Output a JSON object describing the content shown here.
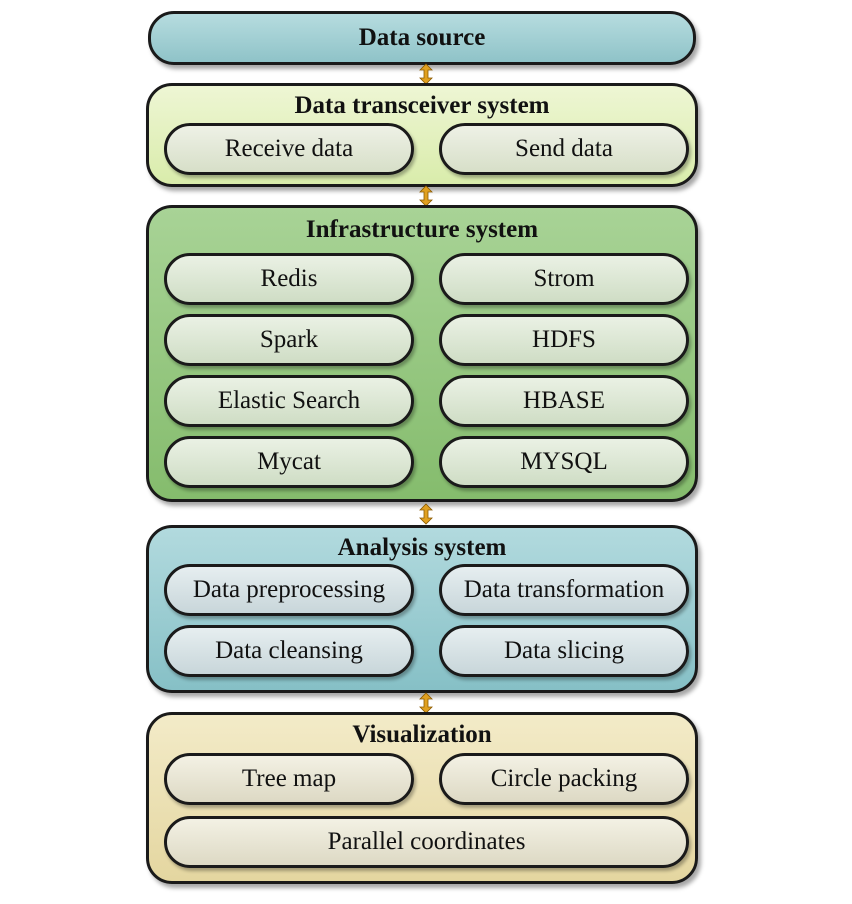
{
  "layers": {
    "source": {
      "title": "Data source"
    },
    "transceiver": {
      "title": "Data transceiver system",
      "items": [
        "Receive data",
        "Send data"
      ]
    },
    "infrastructure": {
      "title": "Infrastructure system",
      "items": [
        "Redis",
        "Strom",
        "Spark",
        "HDFS",
        "Elastic Search",
        "HBASE",
        "Mycat",
        "MYSQL"
      ]
    },
    "analysis": {
      "title": "Analysis system",
      "items": [
        "Data preprocessing",
        "Data transformation",
        "Data cleansing",
        "Data slicing"
      ]
    },
    "visualization": {
      "title": "Visualization",
      "items": [
        "Tree map",
        "Circle packing",
        "Parallel coordinates"
      ]
    }
  },
  "colors": {
    "source": "#9fcdd2",
    "transceiver": "#e3f0bd",
    "infrastructure": "#95c67f",
    "analysis": "#9ccdd2",
    "visualization": "#ebe0b4",
    "connector": "#e0a020"
  },
  "connector_icon": "double-arrow-icon"
}
